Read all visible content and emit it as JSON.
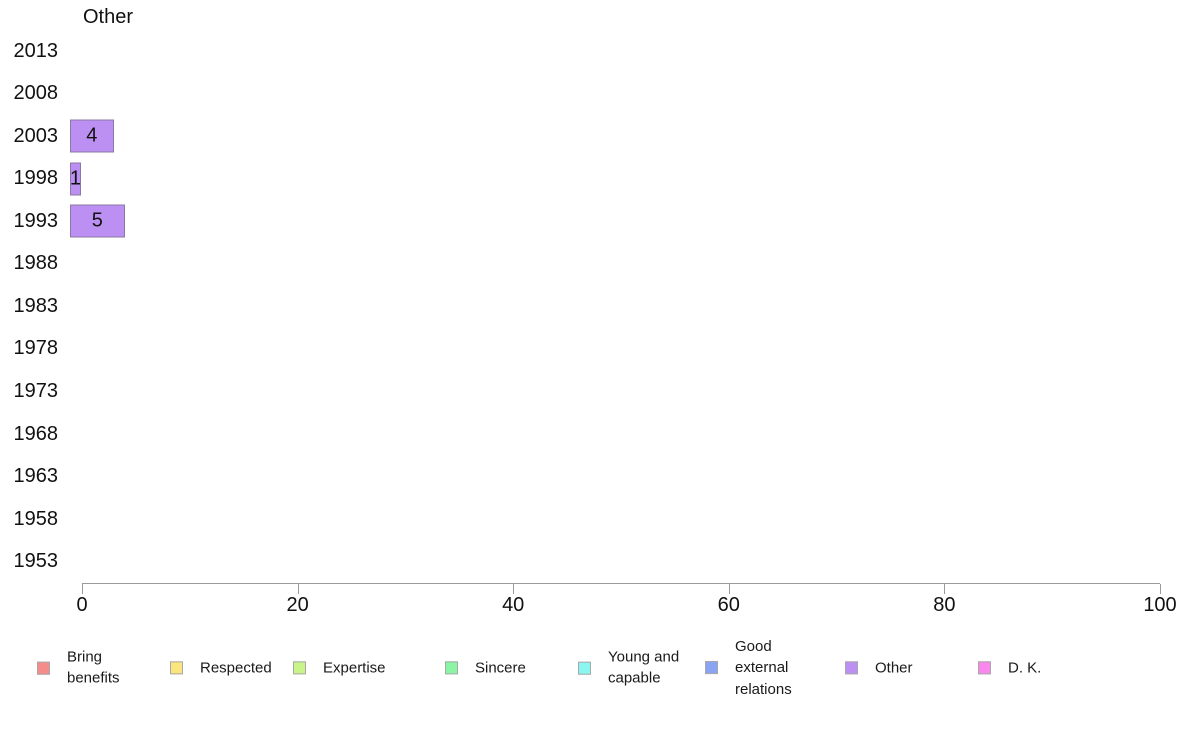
{
  "chart_data": {
    "type": "bar",
    "orientation": "horizontal",
    "title": "Other",
    "categories": [
      "2013",
      "2008",
      "2003",
      "1998",
      "1993",
      "1988",
      "1983",
      "1978",
      "1973",
      "1968",
      "1963",
      "1958",
      "1953"
    ],
    "values": [
      0,
      0,
      4,
      1,
      5,
      0,
      0,
      0,
      0,
      0,
      0,
      0,
      0
    ],
    "bar_labels": [
      "",
      "",
      "4",
      "1",
      "5",
      "",
      "",
      "",
      "",
      "",
      "",
      "",
      ""
    ],
    "xlabel": "",
    "ylabel": "",
    "xlim": [
      0,
      100
    ],
    "x_ticks": [
      0,
      20,
      40,
      60,
      80,
      100
    ],
    "grid": false,
    "bar_color": "#BB90F2",
    "bar_border_color": "#6E6E6E",
    "axis_color": "#9A9A9A",
    "legend_position": "bottom",
    "legend": [
      {
        "label": "Bring benefits",
        "color": "#F58B8B"
      },
      {
        "label": "Respected",
        "color": "#FAE57E"
      },
      {
        "label": "Expertise",
        "color": "#C9F48C"
      },
      {
        "label": "Sincere",
        "color": "#8BF5A6"
      },
      {
        "label": "Young and capable",
        "color": "#8BF5F0"
      },
      {
        "label": "Good external relations",
        "color": "#8BA3F5"
      },
      {
        "label": "Other",
        "color": "#BB90F2"
      },
      {
        "label": "D. K.",
        "color": "#FA87EC"
      }
    ]
  }
}
